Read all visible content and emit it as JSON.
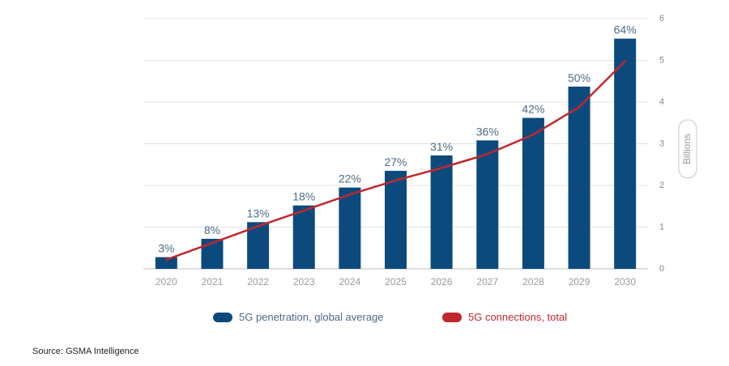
{
  "chart_data": {
    "type": "bar",
    "categories": [
      "2020",
      "2021",
      "2022",
      "2023",
      "2024",
      "2025",
      "2026",
      "2027",
      "2028",
      "2029",
      "2030"
    ],
    "series": [
      {
        "name": "5G penetration, global average",
        "kind": "bar",
        "values": [
          0.28,
          0.72,
          1.12,
          1.52,
          1.95,
          2.35,
          2.72,
          3.08,
          3.62,
          4.37,
          5.52
        ],
        "labels": [
          "3%",
          "8%",
          "13%",
          "18%",
          "22%",
          "27%",
          "31%",
          "36%",
          "42%",
          "50%",
          "64%"
        ],
        "color": "#0c4a7d"
      },
      {
        "name": "5G connections, total",
        "kind": "line",
        "values": [
          0.22,
          0.62,
          1.02,
          1.4,
          1.78,
          2.12,
          2.42,
          2.75,
          3.22,
          3.88,
          4.98
        ],
        "color": "#c0272d"
      }
    ],
    "ylabel": "Billions",
    "ylim": [
      0,
      6
    ],
    "yticks": [
      0,
      1,
      2,
      3,
      4,
      5,
      6
    ],
    "y_axis_side": "right",
    "grid": true,
    "legend_position": "bottom"
  },
  "source": "Source: GSMA Intelligence"
}
